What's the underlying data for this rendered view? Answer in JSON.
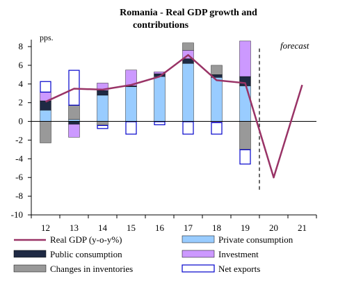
{
  "chart_data": {
    "type": "bar",
    "title_line1": "Romania - Real GDP growth and",
    "title_line2": "contributions",
    "unit_label": "pps.",
    "forecast_label": "forecast",
    "categories": [
      "12",
      "13",
      "14",
      "15",
      "16",
      "17",
      "18",
      "19",
      "20",
      "21"
    ],
    "y_ticks": [
      "8",
      "6",
      "4",
      "2",
      "0",
      "-2",
      "-4",
      "-6",
      "-8",
      "-10"
    ],
    "ylim": [
      -10,
      9
    ],
    "grid": false,
    "legend_position": "bottom",
    "forecast_start_after": "19",
    "series": [
      {
        "name": "Private consumption",
        "color": "#99ccff",
        "kind": "bar",
        "values": [
          1.2,
          0.2,
          2.8,
          3.7,
          4.8,
          6.2,
          4.7,
          3.8,
          null,
          null
        ]
      },
      {
        "name": "Public consumption",
        "color": "#1f2a44",
        "kind": "bar",
        "values": [
          1.0,
          -0.3,
          0.5,
          0.1,
          0.3,
          0.5,
          0.3,
          1.0,
          null,
          null
        ]
      },
      {
        "name": "Investment",
        "color": "#cc99ff",
        "kind": "bar",
        "values": [
          0.9,
          -1.4,
          0.8,
          1.7,
          0.2,
          0.9,
          -0.1,
          3.8,
          null,
          null
        ]
      },
      {
        "name": "Changes in inventories",
        "color": "#999999",
        "kind": "bar",
        "values": [
          -2.3,
          1.5,
          -0.4,
          0.0,
          0.0,
          0.8,
          1.0,
          -3.0,
          null,
          null
        ]
      },
      {
        "name": "Net exports",
        "color": "#ffffff",
        "border": "#0000cc",
        "kind": "bar",
        "values": [
          1.2,
          3.8,
          -0.4,
          -1.4,
          -0.4,
          -1.4,
          -1.3,
          -1.6,
          null,
          null
        ]
      },
      {
        "name": "Real GDP (y-o-y%)",
        "color": "#993366",
        "kind": "line",
        "values": [
          2.1,
          3.5,
          3.4,
          3.9,
          4.8,
          7.1,
          4.4,
          4.1,
          -6.0,
          3.9
        ]
      }
    ]
  }
}
